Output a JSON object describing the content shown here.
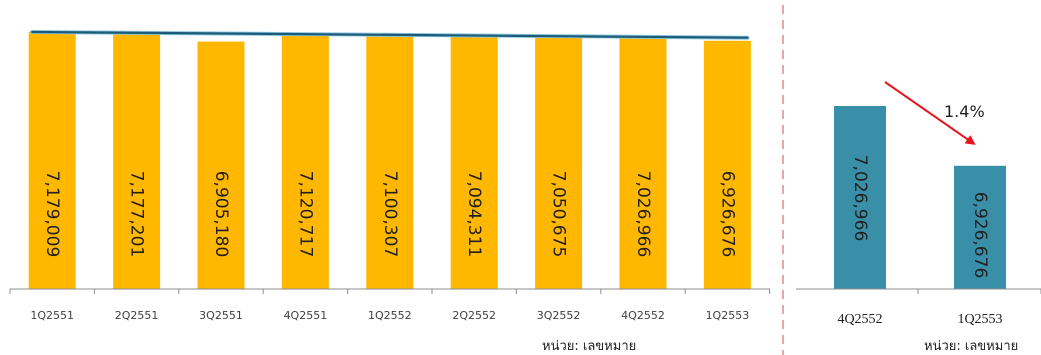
{
  "chart_data": [
    {
      "type": "bar",
      "categories": [
        "1Q2551",
        "2Q2551",
        "3Q2551",
        "4Q2551",
        "1Q2552",
        "2Q2552",
        "3Q2552",
        "4Q2552",
        "1Q2553"
      ],
      "values": [
        7179009,
        7177201,
        6905180,
        7120717,
        7100307,
        7094311,
        7050675,
        7026966,
        6926676
      ],
      "value_labels": [
        "7,179,009",
        "7,177,201",
        "6,905,180",
        "7,120,717",
        "7,100,307",
        "7,094,311",
        "7,050,675",
        "7,026,966",
        "6,926,676"
      ],
      "unit_label": "หน่วย: เลขหมาย",
      "bar_color": "#FFB700",
      "trendline": true,
      "trendline_color": "#1A5C78",
      "ylim": [
        0,
        7200000
      ]
    },
    {
      "type": "bar",
      "categories": [
        "4Q2552",
        "1Q2553"
      ],
      "values": [
        7026966,
        6926676
      ],
      "value_labels": [
        "7,026,966",
        "6,926,676"
      ],
      "unit_label": "หน่วย: เลขหมาย",
      "change_label": "1.4%",
      "bar_color": "#3A8FA8",
      "arrow_color": "#E8141B",
      "ylim": [
        6720000,
        7085000
      ]
    }
  ]
}
